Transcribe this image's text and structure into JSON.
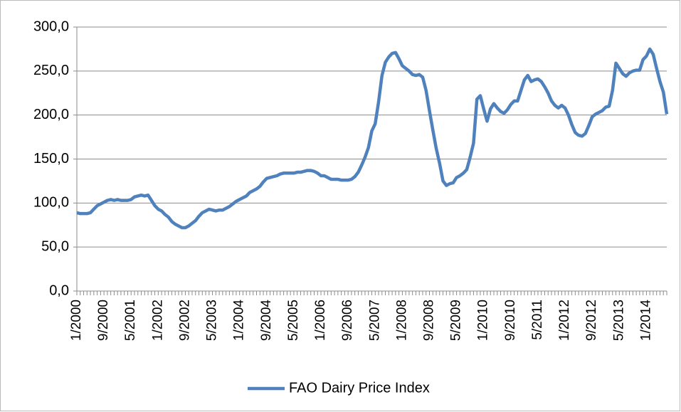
{
  "chart_data": {
    "type": "line",
    "categories": [
      "1/2000",
      null,
      null,
      null,
      null,
      null,
      null,
      null,
      "9/2000",
      null,
      null,
      null,
      null,
      null,
      null,
      null,
      "5/2001",
      null,
      null,
      null,
      null,
      null,
      null,
      null,
      "1/2002",
      null,
      null,
      null,
      null,
      null,
      null,
      null,
      "9/2002",
      null,
      null,
      null,
      null,
      null,
      null,
      null,
      "5/2003",
      null,
      null,
      null,
      null,
      null,
      null,
      null,
      "1/2004",
      null,
      null,
      null,
      null,
      null,
      null,
      null,
      "9/2004",
      null,
      null,
      null,
      null,
      null,
      null,
      null,
      "5/2005",
      null,
      null,
      null,
      null,
      null,
      null,
      null,
      "1/2006",
      null,
      null,
      null,
      null,
      null,
      null,
      null,
      "9/2006",
      null,
      null,
      null,
      null,
      null,
      null,
      null,
      "5/2007",
      null,
      null,
      null,
      null,
      null,
      null,
      null,
      "1/2008",
      null,
      null,
      null,
      null,
      null,
      null,
      null,
      "9/2008",
      null,
      null,
      null,
      null,
      null,
      null,
      null,
      "5/2009",
      null,
      null,
      null,
      null,
      null,
      null,
      null,
      "1/2010",
      null,
      null,
      null,
      null,
      null,
      null,
      null,
      "9/2010",
      null,
      null,
      null,
      null,
      null,
      null,
      null,
      "5/2011",
      null,
      null,
      null,
      null,
      null,
      null,
      null,
      "1/2012",
      null,
      null,
      null,
      null,
      null,
      null,
      null,
      "9/2012",
      null,
      null,
      null,
      null,
      null,
      null,
      null,
      "5/2013",
      null,
      null,
      null,
      null,
      null,
      null,
      null,
      "1/2014",
      null,
      null,
      null,
      null,
      null,
      null
    ],
    "series": [
      {
        "name": "FAO Dairy Price Index",
        "color": "#4f81bd",
        "values": [
          89,
          88,
          88,
          88,
          89,
          93,
          97,
          99,
          101,
          103,
          104,
          103,
          104,
          103,
          103,
          103,
          104,
          107,
          108,
          109,
          108,
          109,
          103,
          97,
          93,
          91,
          87,
          84,
          79,
          76,
          74,
          72,
          72,
          74,
          77,
          80,
          85,
          89,
          91,
          93,
          92,
          91,
          92,
          92,
          94,
          96,
          99,
          102,
          104,
          106,
          108,
          112,
          114,
          116,
          119,
          124,
          128,
          129,
          130,
          131,
          133,
          134,
          134,
          134,
          134,
          135,
          135,
          136,
          137,
          137,
          136,
          134,
          131,
          131,
          129,
          127,
          127,
          127,
          126,
          126,
          126,
          127,
          130,
          135,
          143,
          152,
          163,
          182,
          190,
          215,
          245,
          260,
          266,
          270,
          271,
          264,
          256,
          253,
          250,
          246,
          245,
          246,
          243,
          228,
          205,
          183,
          162,
          145,
          125,
          120,
          122,
          123,
          129,
          131,
          134,
          138,
          152,
          168,
          218,
          222,
          207,
          193,
          207,
          213,
          208,
          204,
          202,
          206,
          212,
          216,
          216,
          228,
          240,
          245,
          238,
          240,
          241,
          238,
          232,
          225,
          216,
          211,
          208,
          211,
          208,
          200,
          189,
          180,
          177,
          176,
          179,
          188,
          198,
          201,
          203,
          205,
          209,
          210,
          228,
          259,
          253,
          247,
          244,
          248,
          250,
          251,
          251,
          263,
          267,
          275,
          269,
          253,
          238,
          226,
          201
        ]
      }
    ],
    "ylim": [
      0,
      300
    ],
    "yticks": [
      {
        "value": 0,
        "label": "0,0"
      },
      {
        "value": 50,
        "label": "50,0"
      },
      {
        "value": 100,
        "label": "100,0"
      },
      {
        "value": 150,
        "label": "150,0"
      },
      {
        "value": 200,
        "label": "200,0"
      },
      {
        "value": 250,
        "label": "250,0"
      },
      {
        "value": 300,
        "label": "300,0"
      }
    ],
    "grid": true,
    "legend": "bottom"
  }
}
